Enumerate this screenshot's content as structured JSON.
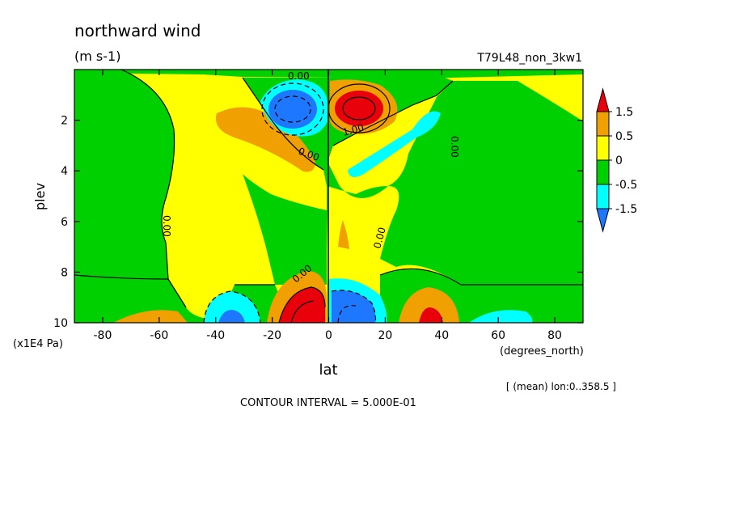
{
  "chart_data": {
    "type": "contour",
    "title": "northward wind",
    "units": "(m s-1)",
    "experiment": "T79L48_non_3kw1",
    "xlabel": "lat",
    "x_unit_label": "(degrees_north)",
    "ylabel": "plev",
    "y_unit_label": "(x1E4 Pa)",
    "xlim": [
      -90,
      90
    ],
    "ylim": [
      10,
      0
    ],
    "x_ticks": [
      -80,
      -60,
      -40,
      -20,
      0,
      20,
      40,
      60,
      80
    ],
    "x_tick_labels": [
      "-80",
      "-60",
      "-40",
      "-20",
      "0",
      "20",
      "40",
      "60",
      "80"
    ],
    "y_ticks": [
      2,
      4,
      6,
      8,
      10
    ],
    "y_tick_labels": [
      "2",
      "4",
      "6",
      "8",
      "10"
    ],
    "contour_interval_text": "CONTOUR INTERVAL = 5.000E-01",
    "mean_text": "[ (mean) lon:0..358.5 ]",
    "contour_labels": [
      "0.00",
      "0.00",
      "1.00",
      "0.00",
      "0.00",
      "0.00",
      "0.00"
    ],
    "colorbar": {
      "labels": [
        "1.5",
        "0.5",
        "0",
        "-0.5",
        "-1.5"
      ],
      "colors": [
        "#e8000b",
        "#f0a000",
        "#ffff00",
        "#00d000",
        "#00ffff",
        "#1e78ff"
      ]
    },
    "extrema": [
      {
        "lat": -10,
        "plev": 1.8,
        "value": -1.7
      },
      {
        "lat": 8,
        "plev": 1.7,
        "value": 1.8
      },
      {
        "lat": -5,
        "plev": 9.7,
        "value": 2.5
      },
      {
        "lat": 8,
        "plev": 9.6,
        "value": -2.5
      },
      {
        "lat": -35,
        "plev": 9.5,
        "value": -1.0
      },
      {
        "lat": 33,
        "plev": 9.8,
        "value": 1.6
      },
      {
        "lat": -55,
        "plev": 9.9,
        "value": 0.8
      },
      {
        "lat": 60,
        "plev": 9.9,
        "value": -0.7
      }
    ]
  }
}
